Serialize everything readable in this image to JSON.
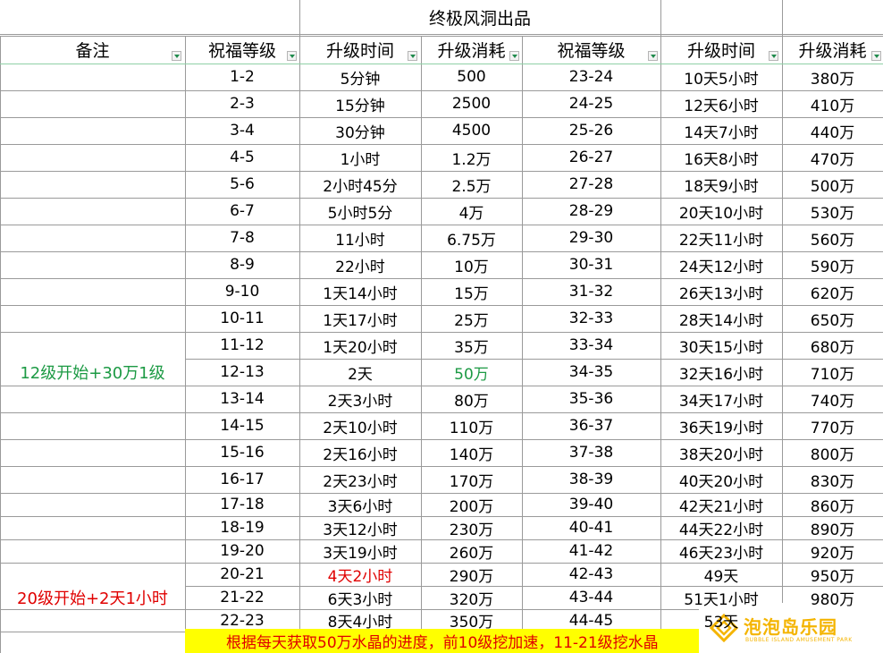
{
  "title": "终极风洞出品",
  "headers": [
    "备注",
    "祝福等级",
    "升级时间",
    "升级消耗",
    "祝福等级",
    "升级时间",
    "升级消耗"
  ],
  "rows": [
    {
      "note": "",
      "lv1": "1-2",
      "t1": "5分钟",
      "c1": "500",
      "lv2": "23-24",
      "t2": "10天5小时",
      "c2": "380万"
    },
    {
      "note": "",
      "lv1": "2-3",
      "t1": "15分钟",
      "c1": "2500",
      "lv2": "24-25",
      "t2": "12天6小时",
      "c2": "410万"
    },
    {
      "note": "",
      "lv1": "3-4",
      "t1": "30分钟",
      "c1": "4500",
      "lv2": "25-26",
      "t2": "14天7小时",
      "c2": "440万"
    },
    {
      "note": "",
      "lv1": "4-5",
      "t1": "1小时",
      "c1": "1.2万",
      "lv2": "26-27",
      "t2": "16天8小时",
      "c2": "470万"
    },
    {
      "note": "",
      "lv1": "5-6",
      "t1": "2小时45分",
      "c1": "2.5万",
      "lv2": "27-28",
      "t2": "18天9小时",
      "c2": "500万"
    },
    {
      "note": "",
      "lv1": "6-7",
      "t1": "5小时5分",
      "c1": "4万",
      "lv2": "28-29",
      "t2": "20天10小时",
      "c2": "530万"
    },
    {
      "note": "",
      "lv1": "7-8",
      "t1": "11小时",
      "c1": "6.75万",
      "lv2": "29-30",
      "t2": "22天11小时",
      "c2": "560万"
    },
    {
      "note": "",
      "lv1": "8-9",
      "t1": "22小时",
      "c1": "10万",
      "lv2": "30-31",
      "t2": "24天12小时",
      "c2": "590万"
    },
    {
      "note": "",
      "lv1": "9-10",
      "t1": "1天14小时",
      "c1": "15万",
      "lv2": "31-32",
      "t2": "26天13小时",
      "c2": "620万"
    },
    {
      "note": "",
      "lv1": "10-11",
      "t1": "1天17小时",
      "c1": "25万",
      "lv2": "32-33",
      "t2": "28天14小时",
      "c2": "650万"
    },
    {
      "note": "",
      "lv1": "11-12",
      "t1": "1天20小时",
      "c1": "35万",
      "lv2": "33-34",
      "t2": "30天15小时",
      "c2": "680万"
    },
    {
      "note": "12级开始+30万1级",
      "lv1": "12-13",
      "t1": "2天",
      "c1": "50万",
      "lv2": "34-35",
      "t2": "32天16小时",
      "c2": "710万"
    },
    {
      "note": "",
      "lv1": "13-14",
      "t1": "2天3小时",
      "c1": "80万",
      "lv2": "35-36",
      "t2": "34天17小时",
      "c2": "740万"
    },
    {
      "note": "",
      "lv1": "14-15",
      "t1": "2天10小时",
      "c1": "110万",
      "lv2": "36-37",
      "t2": "36天19小时",
      "c2": "770万"
    },
    {
      "note": "",
      "lv1": "15-16",
      "t1": "2天16小时",
      "c1": "140万",
      "lv2": "37-38",
      "t2": "38天20小时",
      "c2": "800万"
    },
    {
      "note": "",
      "lv1": "16-17",
      "t1": "2天23小时",
      "c1": "170万",
      "lv2": "38-39",
      "t2": "40天20小时",
      "c2": "830万"
    },
    {
      "note": "",
      "lv1": "17-18",
      "t1": "3天6小时",
      "c1": "200万",
      "lv2": "39-40",
      "t2": "42天21小时",
      "c2": "860万"
    },
    {
      "note": "",
      "lv1": "18-19",
      "t1": "3天12小时",
      "c1": "230万",
      "lv2": "40-41",
      "t2": "44天22小时",
      "c2": "890万"
    },
    {
      "note": "",
      "lv1": "19-20",
      "t1": "3天19小时",
      "c1": "260万",
      "lv2": "41-42",
      "t2": "46天23小时",
      "c2": "920万"
    },
    {
      "note": "",
      "lv1": "20-21",
      "t1": "4天2小时",
      "c1": "290万",
      "lv2": "42-43",
      "t2": "49天",
      "c2": "950万"
    },
    {
      "note": "20级开始+2天1小时",
      "lv1": "21-22",
      "t1": "6天3小时",
      "c1": "320万",
      "lv2": "43-44",
      "t2": "51天1小时",
      "c2": "980万"
    },
    {
      "note": "",
      "lv1": "22-23",
      "t1": "8天4小时",
      "c1": "350万",
      "lv2": "44-45",
      "t2": "53天",
      "c2": ""
    }
  ],
  "footer_note": "根据每天获取50万水晶的进度，前10级挖加速，11-21级挖水晶",
  "logo": {
    "cn": "泡泡岛乐园",
    "en": "BUBBLE ISLAND AMUSEMENT PARK"
  },
  "colors": {
    "green": "#1c9a44",
    "red": "#e00000",
    "highlight": "#ffff00",
    "logo": "#f4b400"
  }
}
